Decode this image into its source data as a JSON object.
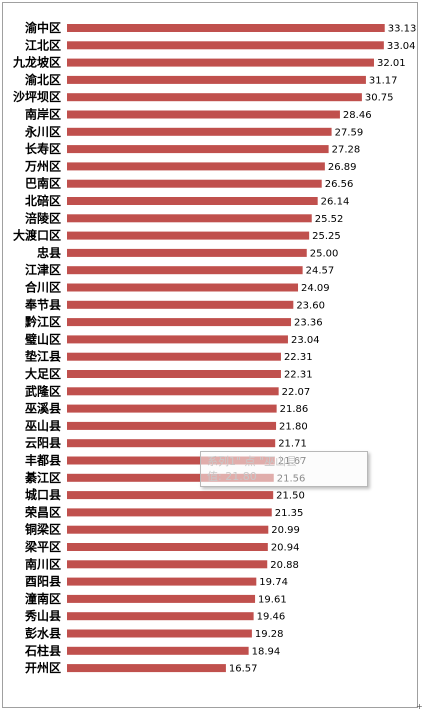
{
  "chart_data": {
    "type": "bar",
    "orientation": "horizontal",
    "title": "",
    "xlabel": "",
    "ylabel": "",
    "bar_color": "#c0504d",
    "xlim": [
      0,
      33.5
    ],
    "grid": false,
    "legend": "none",
    "categories": [
      "渝中区",
      "江北区",
      "九龙坡区",
      "渝北区",
      "沙坪坝区",
      "南岸区",
      "永川区",
      "长寿区",
      "万州区",
      "巴南区",
      "北碚区",
      "涪陵区",
      "大渡口区",
      "忠县",
      "江津区",
      "合川区",
      "奉节县",
      "黔江区",
      "璧山区",
      "垫江县",
      "大足区",
      "武隆区",
      "巫溪县",
      "巫山县",
      "云阳县",
      "丰都县",
      "綦江区",
      "城口县",
      "荣昌区",
      "铜梁区",
      "梁平区",
      "南川区",
      "酉阳县",
      "潼南区",
      "秀山县",
      "彭水县",
      "石柱县",
      "开州区"
    ],
    "values": [
      33.13,
      33.04,
      32.01,
      31.17,
      30.75,
      28.46,
      27.59,
      27.28,
      26.89,
      26.56,
      26.14,
      25.52,
      25.25,
      25.0,
      24.57,
      24.09,
      23.6,
      23.36,
      23.04,
      22.31,
      22.31,
      22.07,
      21.86,
      21.8,
      21.71,
      21.67,
      21.56,
      21.5,
      21.35,
      20.99,
      20.94,
      20.88,
      19.74,
      19.61,
      19.46,
      19.28,
      18.94,
      16.57
    ],
    "value_labels": [
      "33.13",
      "33.04",
      "32.01",
      "31.17",
      "30.75",
      "28.46",
      "27.59",
      "27.28",
      "26.89",
      "26.56",
      "26.14",
      "25.52",
      "25.25",
      "25.00",
      "24.57",
      "24.09",
      "23.60",
      "23.36",
      "23.04",
      "22.31",
      "22.31",
      "22.07",
      "21.86",
      "21.80",
      "21.71",
      "21.67",
      "21.56",
      "21.50",
      "21.35",
      "20.99",
      "20.94",
      "20.88",
      "19.74",
      "19.61",
      "19.46",
      "19.28",
      "18.94",
      "16.57"
    ]
  },
  "tooltip": {
    "line1": "系列1\" 点 \"巫山县\"",
    "line2": "值: 21.80"
  },
  "corner_mark": "+"
}
